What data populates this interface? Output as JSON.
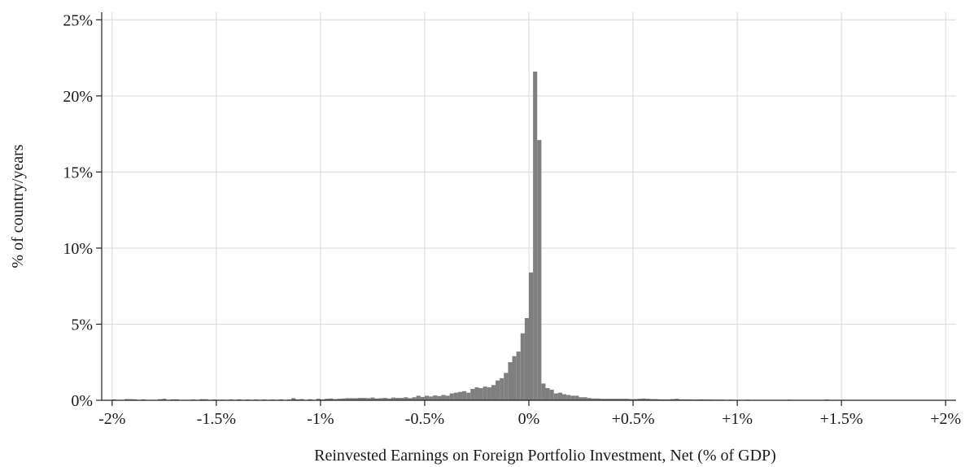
{
  "chart_data": {
    "type": "bar",
    "title": "",
    "xlabel": "Reinvested Earnings on Foreign Portfolio Investment, Net (% of GDP)",
    "ylabel": "% of country/years",
    "xlim": [
      -2.05,
      2.05
    ],
    "ylim": [
      0,
      25.5
    ],
    "grid": true,
    "bar_color": "#7f7f7f",
    "bin_width": 0.02,
    "x_ticks": [
      {
        "value": -2,
        "label": "-2%"
      },
      {
        "value": -1.5,
        "label": "-1.5%"
      },
      {
        "value": -1,
        "label": "-1%"
      },
      {
        "value": -0.5,
        "label": "-0.5%"
      },
      {
        "value": 0,
        "label": "0%"
      },
      {
        "value": 0.5,
        "label": "+0.5%"
      },
      {
        "value": 1,
        "label": "+1%"
      },
      {
        "value": 1.5,
        "label": "+1.5%"
      },
      {
        "value": 2,
        "label": "+2%"
      }
    ],
    "y_ticks": [
      {
        "value": 0,
        "label": "0%"
      },
      {
        "value": 5,
        "label": "5%"
      },
      {
        "value": 10,
        "label": "10%"
      },
      {
        "value": 15,
        "label": "15%"
      },
      {
        "value": 20,
        "label": "20%"
      },
      {
        "value": 25,
        "label": "25%"
      }
    ],
    "bins": [
      {
        "x": -1.99,
        "y": 0.06
      },
      {
        "x": -1.93,
        "y": 0.08
      },
      {
        "x": -1.91,
        "y": 0.07
      },
      {
        "x": -1.89,
        "y": 0.06
      },
      {
        "x": -1.85,
        "y": 0.06
      },
      {
        "x": -1.77,
        "y": 0.07
      },
      {
        "x": -1.75,
        "y": 0.1
      },
      {
        "x": -1.71,
        "y": 0.06
      },
      {
        "x": -1.69,
        "y": 0.06
      },
      {
        "x": -1.61,
        "y": 0.05
      },
      {
        "x": -1.57,
        "y": 0.07
      },
      {
        "x": -1.55,
        "y": 0.07
      },
      {
        "x": -1.51,
        "y": 0.05
      },
      {
        "x": -1.47,
        "y": 0.04
      },
      {
        "x": -1.43,
        "y": 0.06
      },
      {
        "x": -1.39,
        "y": 0.06
      },
      {
        "x": -1.35,
        "y": 0.05
      },
      {
        "x": -1.31,
        "y": 0.05
      },
      {
        "x": -1.27,
        "y": 0.05
      },
      {
        "x": -1.23,
        "y": 0.05
      },
      {
        "x": -1.19,
        "y": 0.06
      },
      {
        "x": -1.15,
        "y": 0.05
      },
      {
        "x": -1.13,
        "y": 0.14
      },
      {
        "x": -1.11,
        "y": 0.06
      },
      {
        "x": -1.09,
        "y": 0.08
      },
      {
        "x": -1.05,
        "y": 0.07
      },
      {
        "x": -1.01,
        "y": 0.1
      },
      {
        "x": -0.99,
        "y": 0.06
      },
      {
        "x": -0.97,
        "y": 0.1
      },
      {
        "x": -0.95,
        "y": 0.12
      },
      {
        "x": -0.93,
        "y": 0.08
      },
      {
        "x": -0.91,
        "y": 0.1
      },
      {
        "x": -0.89,
        "y": 0.12
      },
      {
        "x": -0.87,
        "y": 0.14
      },
      {
        "x": -0.85,
        "y": 0.14
      },
      {
        "x": -0.83,
        "y": 0.14
      },
      {
        "x": -0.81,
        "y": 0.16
      },
      {
        "x": -0.79,
        "y": 0.16
      },
      {
        "x": -0.77,
        "y": 0.14
      },
      {
        "x": -0.75,
        "y": 0.18
      },
      {
        "x": -0.73,
        "y": 0.12
      },
      {
        "x": -0.71,
        "y": 0.14
      },
      {
        "x": -0.69,
        "y": 0.16
      },
      {
        "x": -0.67,
        "y": 0.12
      },
      {
        "x": -0.65,
        "y": 0.18
      },
      {
        "x": -0.63,
        "y": 0.16
      },
      {
        "x": -0.61,
        "y": 0.16
      },
      {
        "x": -0.59,
        "y": 0.2
      },
      {
        "x": -0.57,
        "y": 0.14
      },
      {
        "x": -0.55,
        "y": 0.2
      },
      {
        "x": -0.53,
        "y": 0.3
      },
      {
        "x": -0.51,
        "y": 0.22
      },
      {
        "x": -0.49,
        "y": 0.3
      },
      {
        "x": -0.47,
        "y": 0.25
      },
      {
        "x": -0.45,
        "y": 0.32
      },
      {
        "x": -0.43,
        "y": 0.28
      },
      {
        "x": -0.41,
        "y": 0.35
      },
      {
        "x": -0.39,
        "y": 0.3
      },
      {
        "x": -0.37,
        "y": 0.45
      },
      {
        "x": -0.35,
        "y": 0.5
      },
      {
        "x": -0.33,
        "y": 0.55
      },
      {
        "x": -0.31,
        "y": 0.6
      },
      {
        "x": -0.29,
        "y": 0.5
      },
      {
        "x": -0.27,
        "y": 0.75
      },
      {
        "x": -0.25,
        "y": 0.85
      },
      {
        "x": -0.23,
        "y": 0.8
      },
      {
        "x": -0.21,
        "y": 0.9
      },
      {
        "x": -0.19,
        "y": 0.85
      },
      {
        "x": -0.17,
        "y": 1.0
      },
      {
        "x": -0.15,
        "y": 1.3
      },
      {
        "x": -0.13,
        "y": 1.45
      },
      {
        "x": -0.11,
        "y": 1.8
      },
      {
        "x": -0.09,
        "y": 2.5
      },
      {
        "x": -0.07,
        "y": 2.9
      },
      {
        "x": -0.05,
        "y": 3.2
      },
      {
        "x": -0.03,
        "y": 4.4
      },
      {
        "x": -0.01,
        "y": 5.4
      },
      {
        "x": 0.01,
        "y": 8.4
      },
      {
        "x": 0.03,
        "y": 21.6
      },
      {
        "x": 0.05,
        "y": 17.1
      },
      {
        "x": 0.07,
        "y": 1.1
      },
      {
        "x": 0.09,
        "y": 0.8
      },
      {
        "x": 0.11,
        "y": 0.7
      },
      {
        "x": 0.13,
        "y": 0.45
      },
      {
        "x": 0.15,
        "y": 0.5
      },
      {
        "x": 0.17,
        "y": 0.4
      },
      {
        "x": 0.19,
        "y": 0.35
      },
      {
        "x": 0.21,
        "y": 0.3
      },
      {
        "x": 0.23,
        "y": 0.3
      },
      {
        "x": 0.25,
        "y": 0.2
      },
      {
        "x": 0.27,
        "y": 0.2
      },
      {
        "x": 0.29,
        "y": 0.15
      },
      {
        "x": 0.31,
        "y": 0.12
      },
      {
        "x": 0.33,
        "y": 0.12
      },
      {
        "x": 0.35,
        "y": 0.1
      },
      {
        "x": 0.37,
        "y": 0.1
      },
      {
        "x": 0.39,
        "y": 0.1
      },
      {
        "x": 0.41,
        "y": 0.1
      },
      {
        "x": 0.43,
        "y": 0.1
      },
      {
        "x": 0.45,
        "y": 0.1
      },
      {
        "x": 0.47,
        "y": 0.1
      },
      {
        "x": 0.49,
        "y": 0.08
      },
      {
        "x": 0.51,
        "y": 0.08
      },
      {
        "x": 0.53,
        "y": 0.1
      },
      {
        "x": 0.55,
        "y": 0.12
      },
      {
        "x": 0.57,
        "y": 0.1
      },
      {
        "x": 0.59,
        "y": 0.08
      },
      {
        "x": 0.61,
        "y": 0.08
      },
      {
        "x": 0.63,
        "y": 0.06
      },
      {
        "x": 0.65,
        "y": 0.06
      },
      {
        "x": 0.67,
        "y": 0.06
      },
      {
        "x": 0.69,
        "y": 0.08
      },
      {
        "x": 0.71,
        "y": 0.1
      },
      {
        "x": 0.73,
        "y": 0.06
      },
      {
        "x": 0.75,
        "y": 0.06
      },
      {
        "x": 0.77,
        "y": 0.06
      },
      {
        "x": 0.79,
        "y": 0.05
      },
      {
        "x": 0.81,
        "y": 0.05
      },
      {
        "x": 0.83,
        "y": 0.06
      },
      {
        "x": 0.85,
        "y": 0.05
      },
      {
        "x": 0.87,
        "y": 0.05
      },
      {
        "x": 0.89,
        "y": 0.04
      },
      {
        "x": 0.91,
        "y": 0.04
      },
      {
        "x": 0.93,
        "y": 0.04
      },
      {
        "x": 0.97,
        "y": 0.04
      },
      {
        "x": 1.01,
        "y": 0.03
      },
      {
        "x": 1.05,
        "y": 0.04
      },
      {
        "x": 1.09,
        "y": 0.03
      },
      {
        "x": 1.15,
        "y": 0.03
      },
      {
        "x": 1.21,
        "y": 0.03
      },
      {
        "x": 1.25,
        "y": 0.04
      },
      {
        "x": 1.31,
        "y": 0.03
      },
      {
        "x": 1.39,
        "y": 0.03
      },
      {
        "x": 1.43,
        "y": 0.05
      },
      {
        "x": 1.51,
        "y": 0.03
      },
      {
        "x": 1.59,
        "y": 0.03
      },
      {
        "x": 1.67,
        "y": 0.03
      },
      {
        "x": 1.75,
        "y": 0.03
      },
      {
        "x": 1.83,
        "y": 0.03
      },
      {
        "x": 1.91,
        "y": 0.03
      },
      {
        "x": 1.97,
        "y": 0.03
      }
    ]
  }
}
